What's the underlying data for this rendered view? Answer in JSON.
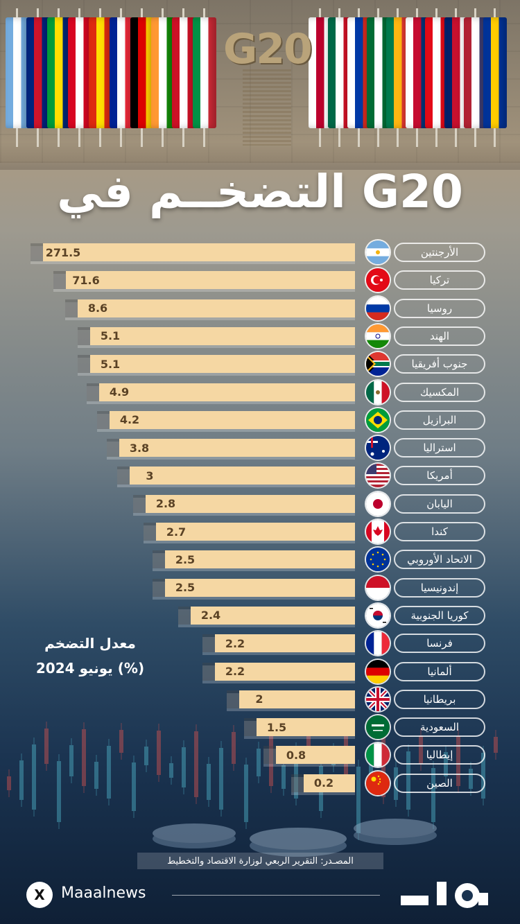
{
  "header": {
    "g20_logo": "G20",
    "title": "التضخــم في G20"
  },
  "legend_block": {
    "line1": "معدل التضخم",
    "line2": "يونيو 2024 (%)"
  },
  "source": "المصـدر: التقرير الربعي لوزارة الاقتصاد والتخطيط",
  "footer": {
    "x_icon": "X",
    "handle": "Maaalnews",
    "logo_icon": "maal-logo"
  },
  "colors": {
    "bar": "#f5d7a3",
    "value_text": "#5a4225",
    "text": "#ffffff"
  },
  "chart_data": {
    "type": "bar",
    "orientation": "horizontal",
    "title": "التضخــم في G20",
    "categories": [
      "الأرجنتين",
      "تركيا",
      "روسيا",
      "الهند",
      "جنوب أفريقيا",
      "المكسيك",
      "البرازيل",
      "استراليا",
      "أمريكا",
      "اليابان",
      "كندا",
      "الاتحاد الأوروبي",
      "إندونيسيا",
      "كوريا الجنوبية",
      "فرنسا",
      "ألمانيا",
      "بريطانيا",
      "السعودية",
      "إيطاليا",
      "الصين"
    ],
    "values": [
      271.5,
      71.6,
      8.6,
      5.1,
      5.1,
      4.9,
      4.2,
      3.8,
      3,
      2.8,
      2.7,
      2.5,
      2.5,
      2.4,
      2.2,
      2.2,
      2,
      1.5,
      0.8,
      0.2
    ],
    "value_labels": [
      "271.5",
      "71.6",
      "8.6",
      "5.1",
      "5.1",
      "4.9",
      "4.2",
      "3.8",
      "3",
      "2.8",
      "2.7",
      "2.5",
      "2.5",
      "2.4",
      "2.2",
      "2.2",
      "2",
      "1.5",
      "0.8",
      "0.2"
    ],
    "flag_icons": [
      "argentina-flag-icon",
      "turkey-flag-icon",
      "russia-flag-icon",
      "india-flag-icon",
      "south-africa-flag-icon",
      "mexico-flag-icon",
      "brazil-flag-icon",
      "australia-flag-icon",
      "usa-flag-icon",
      "japan-flag-icon",
      "canada-flag-icon",
      "eu-flag-icon",
      "indonesia-flag-icon",
      "south-korea-flag-icon",
      "france-flag-icon",
      "germany-flag-icon",
      "uk-flag-icon",
      "saudi-flag-icon",
      "italy-flag-icon",
      "china-flag-icon"
    ],
    "legend_position": "left",
    "grid": false
  }
}
